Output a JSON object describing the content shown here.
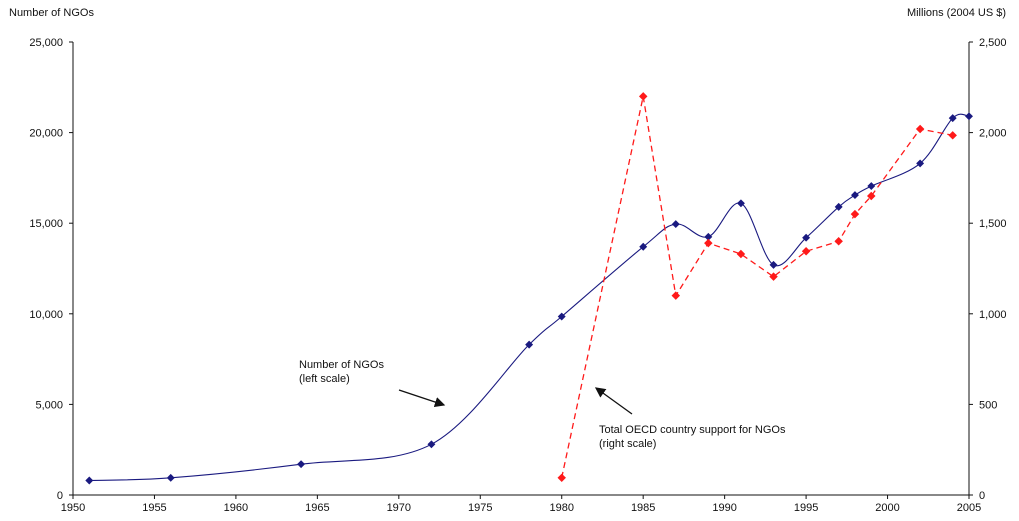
{
  "chart_data": {
    "type": "line",
    "left_axis_title": "Number of NGOs",
    "right_axis_title": "Millions (2004 US $)",
    "x_ticks": [
      1950,
      1955,
      1960,
      1965,
      1970,
      1975,
      1980,
      1985,
      1990,
      1995,
      2000,
      2005
    ],
    "y_left_ticks": [
      "0",
      "5,000",
      "10,000",
      "15,000",
      "20,000",
      "25,000"
    ],
    "y_right_ticks": [
      "0",
      "500",
      "1,000",
      "1,500",
      "2,000",
      "2,500"
    ],
    "xlim": [
      1950,
      2005
    ],
    "ylim_left": [
      0,
      25000
    ],
    "ylim_right": [
      0,
      2500
    ],
    "grid": false,
    "series": [
      {
        "name": "Number of NGOs",
        "axis": "left",
        "color": "#1a1a80",
        "line_style": "solid-smooth",
        "x": [
          1951,
          1956,
          1964,
          1972,
          1978,
          1980,
          1985,
          1987,
          1989,
          1991,
          1993,
          1995,
          1997,
          1998,
          1999,
          2002,
          2004,
          2005
        ],
        "y": [
          800,
          950,
          1700,
          2800,
          8300,
          9850,
          13700,
          14950,
          14250,
          16100,
          12700,
          14200,
          15900,
          16550,
          17050,
          18300,
          20800,
          20900
        ]
      },
      {
        "name": "Total OECD country support for NGOs",
        "axis": "right",
        "color": "#ff1a1a",
        "line_style": "dashed",
        "x": [
          1980,
          1985,
          1987,
          1989,
          1991,
          1993,
          1995,
          1997,
          1998,
          1999,
          2002,
          2004
        ],
        "y": [
          95,
          2200,
          1100,
          1390,
          1330,
          1205,
          1345,
          1400,
          1550,
          1650,
          2020,
          1985
        ]
      }
    ],
    "annotations": [
      {
        "lines": [
          "Number of NGOs",
          "(left scale)"
        ],
        "arrow_to_series": "Number of NGOs"
      },
      {
        "lines": [
          "Total OECD country support for NGOs",
          "(right scale)"
        ],
        "arrow_to_series": "Total OECD country support for NGOs"
      }
    ]
  }
}
